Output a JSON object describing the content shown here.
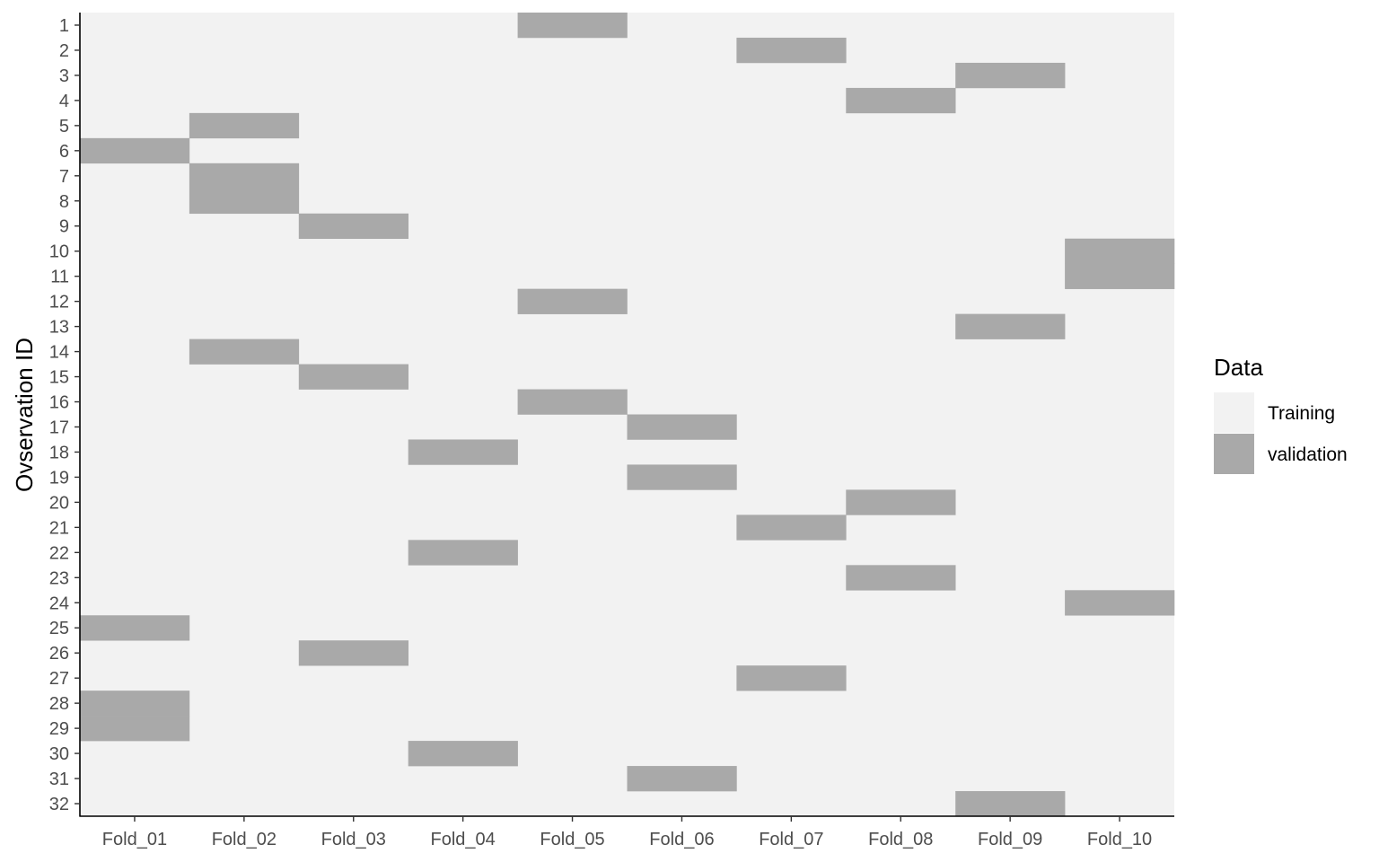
{
  "chart_data": {
    "type": "heatmap",
    "title": "",
    "xlabel": "",
    "ylabel": "Ovservation ID",
    "x_categories": [
      "Fold_01",
      "Fold_02",
      "Fold_03",
      "Fold_04",
      "Fold_05",
      "Fold_06",
      "Fold_07",
      "Fold_08",
      "Fold_09",
      "Fold_10"
    ],
    "y_categories": [
      "1",
      "2",
      "3",
      "4",
      "5",
      "6",
      "7",
      "8",
      "9",
      "10",
      "11",
      "12",
      "13",
      "14",
      "15",
      "16",
      "17",
      "18",
      "19",
      "20",
      "21",
      "22",
      "23",
      "24",
      "25",
      "26",
      "27",
      "28",
      "29",
      "30",
      "31",
      "32"
    ],
    "default_value": "Training",
    "cells": [
      {
        "fold": "Fold_01",
        "obs": [
          6,
          25,
          28,
          29
        ]
      },
      {
        "fold": "Fold_02",
        "obs": [
          5,
          7,
          8,
          14
        ]
      },
      {
        "fold": "Fold_03",
        "obs": [
          9,
          15,
          26
        ]
      },
      {
        "fold": "Fold_04",
        "obs": [
          18,
          22,
          30
        ]
      },
      {
        "fold": "Fold_05",
        "obs": [
          1,
          12,
          16
        ]
      },
      {
        "fold": "Fold_06",
        "obs": [
          17,
          19,
          31
        ]
      },
      {
        "fold": "Fold_07",
        "obs": [
          2,
          21,
          27
        ]
      },
      {
        "fold": "Fold_08",
        "obs": [
          4,
          20,
          23
        ]
      },
      {
        "fold": "Fold_09",
        "obs": [
          3,
          13,
          32
        ]
      },
      {
        "fold": "Fold_10",
        "obs": [
          10,
          11,
          24
        ]
      }
    ],
    "highlight_value": "validation",
    "legend": {
      "title": "Data",
      "placement": "right",
      "entries": [
        {
          "label": "Training",
          "color": "#f2f2f2"
        },
        {
          "label": "validation",
          "color": "#a9a9a9"
        }
      ]
    },
    "grid": false
  }
}
